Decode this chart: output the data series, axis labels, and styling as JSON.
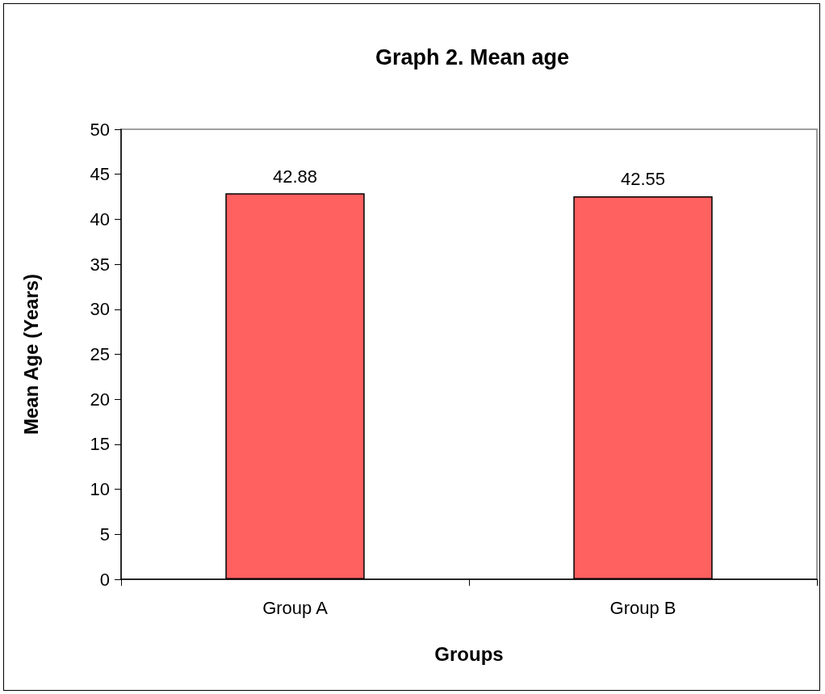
{
  "chart_data": {
    "type": "bar",
    "title": "Graph 2. Mean age",
    "xlabel": "Groups",
    "ylabel": "Mean Age (Years)",
    "categories": [
      "Group A",
      "Group B"
    ],
    "values": [
      42.88,
      42.55
    ],
    "color": "#ff6060",
    "ylim": [
      0,
      50
    ],
    "yticks": [
      0,
      5,
      10,
      15,
      20,
      25,
      30,
      35,
      40,
      45,
      50
    ],
    "grid": false,
    "data_labels": true
  }
}
